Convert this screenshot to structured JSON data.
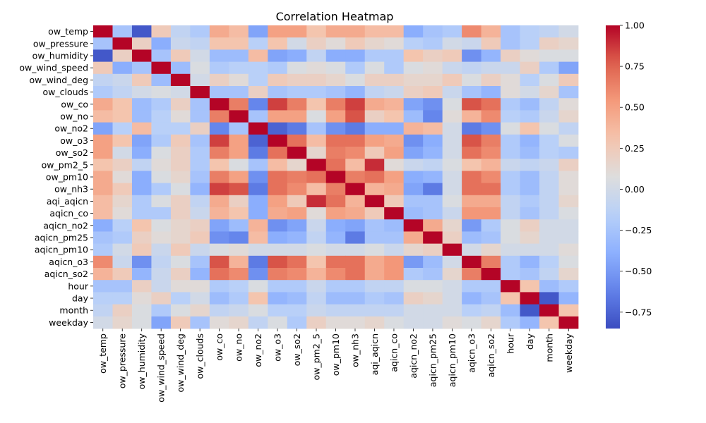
{
  "chart_data": {
    "type": "heatmap",
    "title": "Correlation Heatmap",
    "xlabel": "",
    "ylabel": "",
    "labels": [
      "ow_temp",
      "ow_pressure",
      "ow_humidity",
      "ow_wind_speed",
      "ow_wind_deg",
      "ow_clouds",
      "ow_co",
      "ow_no",
      "ow_no2",
      "ow_o3",
      "ow_so2",
      "ow_pm2_5",
      "ow_pm10",
      "ow_nh3",
      "aqi_aqicn",
      "aqicn_co",
      "aqicn_no2",
      "aqicn_pm25",
      "aqicn_pm10",
      "aqicn_o3",
      "aqicn_so2",
      "hour",
      "day",
      "month",
      "weekday"
    ],
    "vmin": -0.85,
    "vmax": 1.0,
    "colormap": "coolwarm",
    "colorbar_ticks": [
      1.0,
      0.75,
      0.5,
      0.25,
      0.0,
      -0.25,
      -0.5,
      -0.75
    ],
    "colorbar_tick_labels": [
      "1.00",
      "0.75",
      "0.50",
      "0.25",
      "0.00",
      "−0.25",
      "−0.50",
      "−0.75"
    ],
    "matrix": [
      [
        1.0,
        -0.25,
        -0.8,
        0.25,
        -0.1,
        -0.2,
        0.45,
        0.35,
        -0.45,
        0.5,
        0.5,
        0.3,
        0.45,
        0.45,
        0.35,
        0.35,
        -0.4,
        -0.25,
        -0.2,
        0.6,
        0.4,
        -0.25,
        -0.15,
        -0.1,
        0.0
      ],
      [
        -0.25,
        1.0,
        0.2,
        -0.4,
        -0.05,
        -0.1,
        0.3,
        0.3,
        -0.15,
        0.3,
        0.0,
        0.2,
        0.1,
        0.25,
        0.15,
        0.1,
        -0.15,
        -0.2,
        0.0,
        -0.05,
        0.25,
        -0.25,
        -0.15,
        0.2,
        0.15
      ],
      [
        -0.8,
        0.2,
        1.0,
        -0.25,
        0.25,
        0.0,
        -0.3,
        -0.3,
        0.35,
        -0.45,
        -0.4,
        -0.1,
        -0.4,
        -0.4,
        -0.2,
        -0.2,
        0.3,
        0.2,
        0.25,
        -0.55,
        -0.35,
        0.2,
        0.1,
        0.05,
        0.05
      ],
      [
        0.25,
        -0.4,
        -0.25,
        1.0,
        -0.3,
        0.05,
        -0.2,
        -0.15,
        -0.15,
        -0.2,
        0.05,
        0.1,
        0.05,
        -0.2,
        0.05,
        -0.2,
        0.05,
        0.1,
        -0.05,
        -0.1,
        -0.05,
        -0.05,
        0.2,
        -0.2,
        -0.45
      ],
      [
        -0.1,
        -0.05,
        0.25,
        -0.3,
        1.0,
        0.0,
        0.2,
        0.1,
        -0.15,
        0.25,
        0.2,
        0.2,
        0.15,
        0.05,
        0.2,
        0.2,
        0.15,
        0.15,
        0.25,
        0.05,
        0.2,
        0.1,
        -0.15,
        0.05,
        0.25
      ],
      [
        -0.2,
        -0.1,
        0.0,
        0.05,
        0.0,
        1.0,
        -0.25,
        -0.25,
        0.2,
        -0.25,
        -0.2,
        -0.2,
        -0.25,
        -0.35,
        -0.1,
        -0.05,
        0.2,
        0.25,
        -0.05,
        -0.25,
        -0.35,
        0.1,
        0.0,
        0.15,
        -0.25
      ],
      [
        0.45,
        0.3,
        -0.3,
        -0.2,
        0.2,
        -0.25,
        1.0,
        0.65,
        -0.6,
        0.85,
        0.65,
        0.3,
        0.65,
        0.85,
        0.45,
        0.4,
        -0.45,
        -0.55,
        0.05,
        0.8,
        0.7,
        -0.2,
        -0.3,
        -0.1,
        0.1
      ],
      [
        0.35,
        0.3,
        -0.3,
        -0.15,
        0.1,
        -0.25,
        0.65,
        1.0,
        -0.25,
        0.5,
        0.5,
        0.05,
        0.5,
        0.8,
        0.2,
        0.3,
        -0.3,
        -0.6,
        0.1,
        0.4,
        0.6,
        -0.15,
        -0.2,
        -0.05,
        0.15
      ],
      [
        -0.45,
        -0.15,
        0.35,
        -0.15,
        -0.15,
        0.2,
        -0.6,
        -0.25,
        1.0,
        -0.75,
        -0.65,
        -0.25,
        -0.55,
        -0.65,
        -0.4,
        -0.4,
        0.4,
        0.35,
        0.0,
        -0.65,
        -0.55,
        0.05,
        0.3,
        0.05,
        -0.1
      ],
      [
        0.5,
        0.3,
        -0.45,
        -0.2,
        0.25,
        -0.25,
        0.85,
        0.5,
        -0.75,
        1.0,
        0.7,
        0.35,
        0.7,
        0.7,
        0.5,
        0.45,
        -0.55,
        -0.4,
        0.0,
        0.8,
        0.65,
        -0.2,
        -0.35,
        -0.15,
        0.05
      ],
      [
        0.5,
        0.0,
        -0.4,
        0.05,
        0.2,
        -0.2,
        0.65,
        0.5,
        -0.65,
        0.7,
        1.0,
        0.15,
        0.65,
        0.6,
        0.25,
        0.5,
        -0.45,
        -0.35,
        0.0,
        0.7,
        0.6,
        -0.2,
        -0.3,
        -0.15,
        -0.2
      ],
      [
        0.3,
        0.2,
        -0.1,
        0.1,
        0.2,
        -0.2,
        0.3,
        0.05,
        -0.25,
        0.35,
        0.15,
        1.0,
        0.7,
        0.35,
        0.9,
        0.1,
        -0.05,
        -0.1,
        0.05,
        0.3,
        0.4,
        -0.05,
        -0.1,
        -0.05,
        0.2
      ],
      [
        0.45,
        0.1,
        -0.4,
        0.05,
        0.15,
        -0.25,
        0.65,
        0.5,
        -0.55,
        0.7,
        0.65,
        0.7,
        1.0,
        0.65,
        0.7,
        0.5,
        -0.4,
        -0.35,
        0.0,
        0.7,
        0.6,
        -0.2,
        -0.3,
        -0.1,
        0.1
      ],
      [
        0.45,
        0.25,
        -0.4,
        -0.2,
        0.05,
        -0.35,
        0.85,
        0.8,
        -0.65,
        0.7,
        0.6,
        0.35,
        0.65,
        1.0,
        0.4,
        0.45,
        -0.45,
        -0.65,
        0.0,
        0.7,
        0.7,
        -0.2,
        -0.3,
        -0.1,
        0.1
      ],
      [
        0.35,
        0.15,
        -0.2,
        0.05,
        0.2,
        -0.1,
        0.45,
        0.2,
        -0.4,
        0.5,
        0.25,
        0.9,
        0.7,
        0.4,
        1.0,
        0.25,
        -0.25,
        -0.25,
        0.05,
        0.45,
        0.45,
        -0.1,
        -0.2,
        -0.1,
        0.15
      ],
      [
        0.35,
        0.1,
        -0.2,
        -0.2,
        0.2,
        -0.05,
        0.4,
        0.3,
        -0.4,
        0.45,
        0.5,
        0.1,
        0.5,
        0.45,
        0.25,
        1.0,
        -0.3,
        -0.25,
        -0.05,
        0.55,
        0.55,
        -0.1,
        -0.25,
        -0.1,
        0.05
      ],
      [
        -0.4,
        -0.15,
        0.3,
        0.05,
        0.15,
        0.2,
        -0.45,
        -0.3,
        0.4,
        -0.55,
        -0.45,
        -0.05,
        -0.4,
        -0.45,
        -0.25,
        -0.3,
        1.0,
        0.45,
        0.15,
        -0.5,
        -0.2,
        0.05,
        0.2,
        0.0,
        0.0
      ],
      [
        -0.25,
        -0.2,
        0.2,
        0.1,
        0.15,
        0.25,
        -0.55,
        -0.6,
        0.35,
        -0.4,
        -0.35,
        -0.1,
        -0.35,
        -0.65,
        -0.25,
        -0.25,
        0.45,
        1.0,
        0.2,
        -0.3,
        -0.25,
        0.05,
        0.15,
        0.0,
        0.0
      ],
      [
        -0.2,
        0.0,
        0.25,
        -0.05,
        0.25,
        -0.05,
        0.05,
        0.1,
        0.0,
        0.0,
        0.0,
        0.05,
        0.0,
        0.0,
        0.05,
        -0.05,
        0.15,
        0.2,
        1.0,
        0.0,
        0.15,
        0.0,
        0.0,
        0.0,
        0.1
      ],
      [
        0.6,
        -0.05,
        -0.55,
        -0.1,
        0.05,
        -0.25,
        0.8,
        0.4,
        -0.65,
        0.8,
        0.7,
        0.3,
        0.7,
        0.7,
        0.45,
        0.55,
        -0.5,
        -0.3,
        0.0,
        1.0,
        0.65,
        -0.2,
        -0.35,
        -0.15,
        0.05
      ],
      [
        0.4,
        0.25,
        -0.35,
        -0.05,
        0.2,
        -0.35,
        0.7,
        0.6,
        -0.55,
        0.65,
        0.6,
        0.4,
        0.6,
        0.7,
        0.45,
        0.55,
        -0.2,
        -0.25,
        0.15,
        0.65,
        1.0,
        -0.2,
        -0.25,
        -0.1,
        0.15
      ],
      [
        -0.25,
        -0.25,
        0.2,
        -0.05,
        0.1,
        0.1,
        -0.2,
        -0.15,
        0.05,
        -0.2,
        -0.2,
        -0.05,
        -0.2,
        -0.2,
        -0.1,
        -0.1,
        0.05,
        0.05,
        0.0,
        -0.2,
        -0.2,
        1.0,
        0.3,
        -0.3,
        -0.2
      ],
      [
        -0.15,
        -0.15,
        0.1,
        0.2,
        -0.15,
        0.0,
        -0.3,
        -0.2,
        0.3,
        -0.35,
        -0.3,
        -0.1,
        -0.3,
        -0.3,
        -0.2,
        -0.25,
        0.2,
        0.15,
        0.0,
        -0.35,
        -0.25,
        0.3,
        1.0,
        -0.8,
        -0.35
      ],
      [
        -0.1,
        0.2,
        0.05,
        -0.2,
        0.05,
        0.15,
        -0.1,
        -0.05,
        0.05,
        -0.15,
        -0.15,
        -0.05,
        -0.1,
        -0.1,
        -0.1,
        -0.1,
        0.0,
        0.0,
        0.0,
        -0.15,
        -0.1,
        -0.3,
        -0.8,
        1.0,
        0.3
      ],
      [
        0.0,
        0.15,
        0.05,
        -0.45,
        0.25,
        -0.25,
        0.1,
        0.15,
        -0.1,
        0.05,
        -0.2,
        0.2,
        0.1,
        0.1,
        0.15,
        0.05,
        0.0,
        0.0,
        0.1,
        0.05,
        0.15,
        -0.2,
        -0.35,
        0.3,
        1.0
      ]
    ]
  }
}
